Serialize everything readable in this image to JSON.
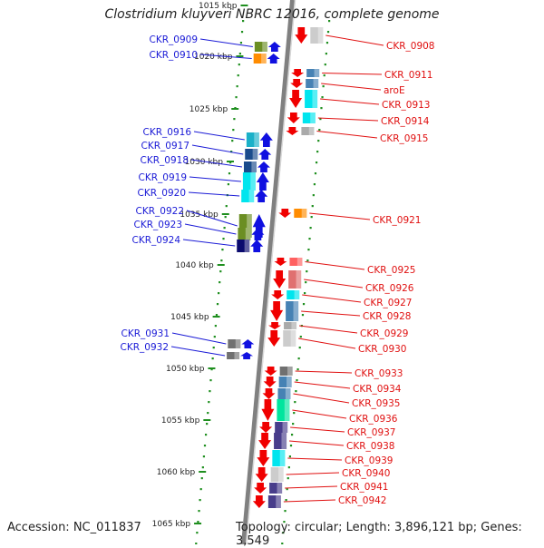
{
  "title": "Clostridium kluyveri NBRC 12016, complete genome",
  "footer": {
    "accession": "Accession: NC_011837",
    "topology": "Topology: circular; Length: 3,896,121 bp; Genes: 3,549"
  },
  "colors": {
    "forward_strand_label": "#1a1ad6",
    "reverse_strand_label": "#e01010",
    "forward_arrow": "#1010e0",
    "reverse_arrow": "#f00000",
    "backbone": "#808080",
    "ruler_dots": "#1f8f1f"
  },
  "ruler": [
    "1015 kbp",
    "1020 kbp",
    "1025 kbp",
    "1030 kbp",
    "1035 kbp",
    "1040 kbp",
    "1045 kbp",
    "1050 kbp",
    "1055 kbp",
    "1060 kbp",
    "1065 kbp"
  ],
  "genes_forward": [
    {
      "label": "CKR_0909",
      "category_color": "#6b8e23"
    },
    {
      "label": "CKR_0910",
      "category_color": "#ff8c00"
    },
    {
      "label": "CKR_0916",
      "category_color": "#1ab0c8"
    },
    {
      "label": "CKR_0917",
      "category_color": "#1a4b8c"
    },
    {
      "label": "CKR_0918",
      "category_color": "#1a4b8c"
    },
    {
      "label": "CKR_0919",
      "category_color": "#00e5ee"
    },
    {
      "label": "CKR_0920",
      "category_color": "#00e5ee"
    },
    {
      "label": "CKR_0922",
      "category_color": "#6b8e23"
    },
    {
      "label": "CKR_0923",
      "category_color": "#6b8e23"
    },
    {
      "label": "CKR_0924",
      "category_color": "#0a0a6e"
    },
    {
      "label": "CKR_0931",
      "category_color": "#707070"
    },
    {
      "label": "CKR_0932",
      "category_color": "#707070"
    }
  ],
  "genes_reverse": [
    {
      "label": "CKR_0908",
      "category_color": "#cccccc"
    },
    {
      "label": "CKR_0911",
      "category_color": "#4682b4"
    },
    {
      "label": "aroE",
      "category_color": "#4682b4"
    },
    {
      "label": "CKR_0913",
      "category_color": "#00e5ee"
    },
    {
      "label": "CKR_0914",
      "category_color": "#00e5ee"
    },
    {
      "label": "CKR_0915",
      "category_color": "#aaaaaa"
    },
    {
      "label": "CKR_0921",
      "category_color": "#ff8c00"
    },
    {
      "label": "CKR_0925",
      "category_color": "#ff6060"
    },
    {
      "label": "CKR_0926",
      "category_color": "#e07070"
    },
    {
      "label": "CKR_0927",
      "category_color": "#00e5ee"
    },
    {
      "label": "CKR_0928",
      "category_color": "#4682b4"
    },
    {
      "label": "CKR_0929",
      "category_color": "#aaaaaa"
    },
    {
      "label": "CKR_0930",
      "category_color": "#cccccc"
    },
    {
      "label": "CKR_0933",
      "category_color": "#707070"
    },
    {
      "label": "CKR_0934",
      "category_color": "#4682b4"
    },
    {
      "label": "CKR_0935",
      "category_color": "#4682b4"
    },
    {
      "label": "CKR_0936",
      "category_color": "#00e59e"
    },
    {
      "label": "CKR_0937",
      "category_color": "#483d8b"
    },
    {
      "label": "CKR_0938",
      "category_color": "#483d8b"
    },
    {
      "label": "CKR_0939",
      "category_color": "#00e5ee"
    },
    {
      "label": "CKR_0940",
      "category_color": "#cccccc"
    },
    {
      "label": "CKR_0941",
      "category_color": "#483d8b"
    },
    {
      "label": "CKR_0942",
      "category_color": "#483d8b"
    }
  ]
}
